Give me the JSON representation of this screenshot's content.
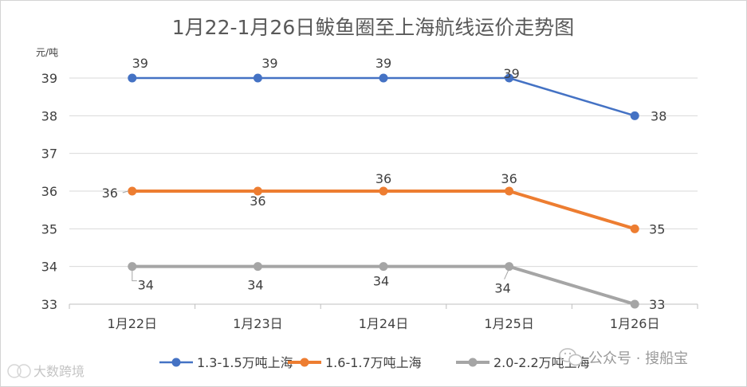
{
  "chart_data": {
    "type": "line",
    "title": "1月22-1月26日鲅鱼圈至上海航线运价走势图",
    "ylabel": "元/吨",
    "xlabel": "",
    "categories": [
      "1月22日",
      "1月23日",
      "1月24日",
      "1月25日",
      "1月26日"
    ],
    "ylim": [
      33,
      39
    ],
    "yticks": [
      33,
      34,
      35,
      36,
      37,
      38,
      39
    ],
    "grid": true,
    "legend_position": "bottom",
    "series": [
      {
        "name": "1.3-1.5万吨上海",
        "color": "#4472c4",
        "values": [
          39,
          39,
          39,
          39,
          38
        ]
      },
      {
        "name": "1.6-1.7万吨上海",
        "color": "#ed7d31",
        "values": [
          36,
          36,
          36,
          36,
          35
        ]
      },
      {
        "name": "2.0-2.2万吨上海",
        "color": "#a5a5a5",
        "values": [
          34,
          34,
          34,
          34,
          33
        ]
      }
    ]
  },
  "watermarks": {
    "public_account": "公众号 · 搜船宝",
    "left_mark": "大数跨境",
    "icon_name": "wechat-icon"
  }
}
